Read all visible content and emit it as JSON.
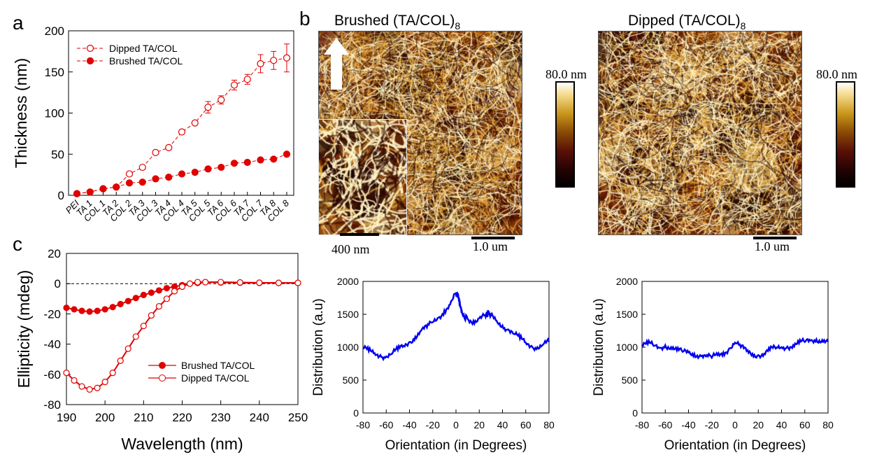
{
  "panel_labels": {
    "a": "a",
    "b": "b",
    "c": "c"
  },
  "afm": {
    "brushed_title": "Brushed (TA/COL)",
    "dipped_title": "Dipped (TA/COL)",
    "subscript": "8",
    "colorbar_label": "80.0 nm",
    "inset_scale": "400 nm",
    "scale": "1.0 um",
    "arrow_icon": "up-arrow-icon"
  },
  "chart_data": [
    {
      "id": "a",
      "type": "line",
      "ylabel": "Thickness (nm)",
      "xlabel": "",
      "ylim": [
        0,
        200
      ],
      "yticks": [
        0,
        50,
        100,
        150,
        200
      ],
      "categories": [
        "PEI",
        "TA 1",
        "COL 1",
        "TA 2",
        "COL 2",
        "TA 3",
        "COL 3",
        "TA 4",
        "COL 4",
        "TA 5",
        "COL 5",
        "TA 6",
        "COL 6",
        "TA 7",
        "COL 7",
        "TA 8",
        "COL 8"
      ],
      "legend_position": "top-left",
      "series": [
        {
          "name": "Dipped TA/COL",
          "marker": "open-circle",
          "color": "#e00000",
          "values": [
            2,
            4,
            8,
            10,
            26,
            34,
            52,
            58,
            77,
            88,
            107,
            116,
            134,
            141,
            160,
            164,
            167
          ],
          "errors": [
            0,
            0,
            0,
            0,
            0,
            0,
            0,
            0,
            0,
            0,
            7,
            5,
            6,
            6,
            11,
            11,
            17
          ]
        },
        {
          "name": "Brushed TA/COL",
          "marker": "filled-circle",
          "color": "#e00000",
          "values": [
            2,
            4,
            8,
            10,
            15,
            16,
            20,
            22,
            26,
            28,
            32,
            34,
            39,
            40,
            43,
            44,
            50
          ],
          "errors": [
            0,
            0,
            0,
            0,
            0,
            0,
            0,
            0,
            0,
            0,
            0,
            0,
            0,
            0,
            0,
            0,
            2
          ]
        }
      ]
    },
    {
      "id": "c",
      "type": "scatter",
      "ylabel": "Ellipticity (mdeg)",
      "xlabel": "Wavelength (nm)",
      "xlim": [
        190,
        250
      ],
      "ylim": [
        -80,
        20
      ],
      "xticks": [
        190,
        200,
        210,
        220,
        230,
        240,
        250
      ],
      "yticks": [
        -80,
        -60,
        -40,
        -20,
        0,
        20
      ],
      "legend_position": "bottom-right",
      "series": [
        {
          "name": "Brushed TA/COL",
          "marker": "filled-circle",
          "color": "#e00000",
          "x": [
            190,
            192,
            194,
            196,
            198,
            200,
            202,
            204,
            206,
            208,
            210,
            212,
            214,
            216,
            218,
            220,
            222,
            224,
            226,
            230,
            235,
            240,
            245,
            250
          ],
          "y": [
            -16,
            -17,
            -18,
            -18.5,
            -18,
            -17,
            -15.5,
            -13.5,
            -11.5,
            -9.5,
            -7.5,
            -6,
            -4.5,
            -3,
            -2,
            -1,
            0,
            0.5,
            1,
            0.8,
            0.6,
            0.5,
            0.5,
            0.5
          ]
        },
        {
          "name": "Dipped TA/COL",
          "marker": "open-circle",
          "color": "#e00000",
          "x": [
            190,
            192,
            194,
            196,
            198,
            200,
            202,
            204,
            206,
            208,
            210,
            212,
            214,
            216,
            218,
            220,
            222,
            224,
            226,
            230,
            235,
            240,
            245,
            250
          ],
          "y": [
            -59,
            -64,
            -68,
            -70,
            -69,
            -65,
            -59,
            -51,
            -43,
            -35,
            -28,
            -21,
            -15,
            -10,
            -5,
            -2,
            0,
            1,
            1,
            1,
            0.8,
            0.6,
            0.5,
            0.5
          ]
        }
      ]
    },
    {
      "id": "d1",
      "type": "line",
      "ylabel": "Distribution (a.u)",
      "xlabel": "Orientation (in Degrees)",
      "xlim": [
        -80,
        80
      ],
      "ylim": [
        0,
        2000
      ],
      "xticks": [
        -80,
        -60,
        -40,
        -20,
        0,
        20,
        40,
        60,
        80
      ],
      "yticks": [
        0,
        500,
        1000,
        1500,
        2000
      ],
      "series": [
        {
          "color": "#0000ee",
          "x": [
            -80,
            -75,
            -70,
            -65,
            -60,
            -55,
            -50,
            -45,
            -40,
            -35,
            -30,
            -25,
            -20,
            -15,
            -10,
            -5,
            0,
            2,
            4,
            6,
            10,
            15,
            20,
            25,
            28,
            30,
            35,
            40,
            45,
            50,
            55,
            60,
            65,
            70,
            75,
            80
          ],
          "y": [
            980,
            940,
            910,
            880,
            860,
            900,
            960,
            1020,
            1080,
            1160,
            1250,
            1300,
            1380,
            1450,
            1560,
            1650,
            1820,
            1780,
            1600,
            1480,
            1430,
            1400,
            1440,
            1490,
            1520,
            1480,
            1400,
            1330,
            1270,
            1200,
            1130,
            1070,
            1020,
            1000,
            1040,
            1080
          ]
        }
      ]
    },
    {
      "id": "d2",
      "type": "line",
      "ylabel": "Distribution (a.u)",
      "xlabel": "Orientation (in Degrees)",
      "xlim": [
        -80,
        80
      ],
      "ylim": [
        0,
        2000
      ],
      "xticks": [
        -80,
        -60,
        -40,
        -20,
        0,
        20,
        40,
        60,
        80
      ],
      "yticks": [
        0,
        500,
        1000,
        1500,
        2000
      ],
      "series": [
        {
          "color": "#0000ee",
          "x": [
            -80,
            -75,
            -70,
            -65,
            -60,
            -55,
            -50,
            -45,
            -40,
            -35,
            -30,
            -25,
            -20,
            -15,
            -10,
            -5,
            0,
            5,
            10,
            15,
            20,
            25,
            30,
            35,
            40,
            45,
            50,
            55,
            60,
            65,
            70,
            75,
            80
          ],
          "y": [
            1040,
            1050,
            1020,
            990,
            1030,
            1000,
            950,
            930,
            920,
            900,
            880,
            860,
            840,
            880,
            920,
            980,
            1070,
            1000,
            940,
            900,
            880,
            900,
            960,
            980,
            1000,
            1010,
            1030,
            1060,
            1080,
            1100,
            1120,
            1110,
            1080
          ]
        }
      ]
    }
  ]
}
